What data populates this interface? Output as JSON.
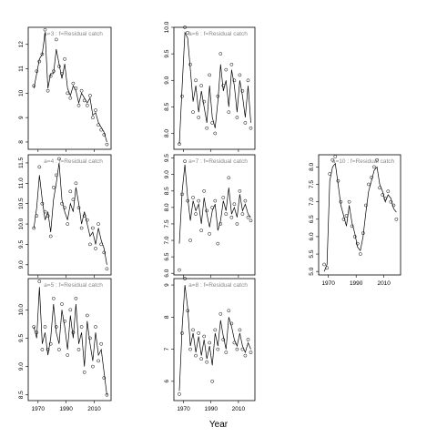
{
  "figure": {
    "xlabel": "Year"
  },
  "chart_data": [
    {
      "type": "line",
      "subtype": "line+points",
      "title": "a=3 : f=Residual catch",
      "ylim": [
        7.7,
        12.7
      ],
      "yticks": [
        8,
        9,
        10,
        11,
        12
      ],
      "xlim": [
        1963,
        2022
      ],
      "x": [
        1967,
        1969,
        1971,
        1973,
        1975,
        1977,
        1979,
        1981,
        1983,
        1985,
        1987,
        1989,
        1991,
        1993,
        1995,
        1997,
        1999,
        2001,
        2003,
        2005,
        2007,
        2009,
        2011,
        2013,
        2015,
        2017,
        2019
      ],
      "y": [
        10.2,
        10.8,
        11.4,
        11.6,
        12.5,
        10.2,
        10.8,
        10.8,
        11.8,
        11.2,
        10.6,
        11.2,
        10.2,
        9.9,
        10.3,
        10.1,
        9.6,
        10.0,
        9.8,
        9.6,
        9.8,
        9.1,
        9.2,
        8.8,
        8.6,
        8.4,
        8.0
      ],
      "points": [
        10.3,
        10.9,
        11.3,
        11.6,
        12.6,
        10.1,
        10.7,
        10.9,
        12.2,
        11.1,
        10.8,
        11.4,
        10.0,
        9.8,
        10.4,
        10.2,
        9.5,
        10.1,
        9.7,
        9.5,
        9.9,
        9.0,
        9.3,
        8.7,
        8.5,
        8.3,
        7.9
      ]
    },
    {
      "type": "line",
      "subtype": "line+points",
      "title": "a=4 : f=Residual catch",
      "ylim": [
        8.75,
        11.7
      ],
      "yticks": [
        9.0,
        9.5,
        10.0,
        10.5,
        11.0,
        11.5
      ],
      "xlim": [
        1963,
        2022
      ],
      "x": [
        1967,
        1969,
        1971,
        1973,
        1975,
        1977,
        1979,
        1981,
        1983,
        1985,
        1987,
        1989,
        1991,
        1993,
        1995,
        1997,
        1999,
        2001,
        2003,
        2005,
        2007,
        2009,
        2011,
        2013,
        2015,
        2017,
        2019
      ],
      "y": [
        9.9,
        10.4,
        11.2,
        10.6,
        10.1,
        10.3,
        9.8,
        10.6,
        11.0,
        11.5,
        10.6,
        10.3,
        10.1,
        10.5,
        10.3,
        10.9,
        10.5,
        10.0,
        10.3,
        10.0,
        9.7,
        9.8,
        9.5,
        9.9,
        9.6,
        9.4,
        9.0
      ],
      "points": [
        9.9,
        10.2,
        11.4,
        10.5,
        10.3,
        10.2,
        9.7,
        10.9,
        11.2,
        11.6,
        10.5,
        10.4,
        10.0,
        10.8,
        10.6,
        11.0,
        10.4,
        9.9,
        10.2,
        10.1,
        9.5,
        9.9,
        9.4,
        10.0,
        9.5,
        9.3,
        8.9
      ]
    },
    {
      "type": "line",
      "subtype": "line+points",
      "title": "a=5 : f=Residual catch",
      "ylim": [
        8.4,
        10.55
      ],
      "yticks": [
        8.5,
        9.0,
        9.5,
        10.0
      ],
      "xlim": [
        1963,
        2022
      ],
      "x": [
        1967,
        1969,
        1971,
        1973,
        1975,
        1977,
        1979,
        1981,
        1983,
        1985,
        1987,
        1989,
        1991,
        1993,
        1995,
        1997,
        1999,
        2001,
        2003,
        2005,
        2007,
        2009,
        2011,
        2013,
        2015,
        2017,
        2019
      ],
      "y": [
        9.7,
        9.5,
        10.4,
        9.4,
        9.6,
        9.2,
        9.5,
        10.1,
        9.6,
        9.4,
        10.0,
        9.7,
        9.3,
        9.9,
        9.5,
        10.1,
        9.4,
        9.6,
        9.0,
        9.8,
        9.4,
        9.1,
        9.6,
        9.2,
        9.3,
        8.9,
        8.5
      ],
      "points": [
        9.7,
        9.6,
        10.5,
        9.3,
        9.7,
        9.3,
        9.4,
        10.2,
        9.7,
        9.3,
        10.1,
        9.8,
        9.2,
        10.0,
        9.6,
        10.2,
        9.3,
        9.7,
        8.9,
        9.9,
        9.5,
        9.0,
        9.7,
        9.1,
        9.4,
        8.8,
        8.5
      ]
    },
    {
      "type": "line",
      "subtype": "line+points",
      "title": "a=6 : f=Residual catch",
      "ylim": [
        7.7,
        10.0
      ],
      "yticks": [
        8.0,
        8.5,
        9.0,
        9.5,
        10.0
      ],
      "xlim": [
        1963,
        2022
      ],
      "x": [
        1967,
        1969,
        1971,
        1973,
        1975,
        1977,
        1979,
        1981,
        1983,
        1985,
        1987,
        1989,
        1991,
        1993,
        1995,
        1997,
        1999,
        2001,
        2003,
        2005,
        2007,
        2009,
        2011,
        2013,
        2015,
        2017,
        2019
      ],
      "y": [
        7.8,
        8.9,
        9.9,
        9.8,
        9.2,
        8.6,
        8.9,
        8.4,
        8.8,
        8.5,
        8.2,
        8.9,
        8.3,
        8.1,
        8.6,
        9.3,
        8.8,
        9.0,
        8.5,
        9.2,
        8.9,
        8.4,
        9.0,
        8.7,
        8.3,
        8.9,
        8.2
      ],
      "points": [
        7.8,
        8.7,
        10.0,
        9.9,
        9.3,
        8.4,
        9.0,
        8.3,
        8.9,
        8.6,
        8.1,
        9.1,
        8.2,
        8.0,
        8.7,
        9.5,
        8.9,
        9.2,
        8.4,
        9.3,
        9.0,
        8.3,
        9.1,
        8.8,
        8.2,
        9.0,
        8.1
      ]
    },
    {
      "type": "line",
      "subtype": "line+points",
      "title": "a=7 : f=Residual catch",
      "ylim": [
        5.95,
        9.6
      ],
      "yticks": [
        6.0,
        6.5,
        7.0,
        7.5,
        8.0,
        8.5,
        9.0,
        9.5
      ],
      "xlim": [
        1963,
        2022
      ],
      "x": [
        1967,
        1969,
        1971,
        1973,
        1975,
        1977,
        1979,
        1981,
        1983,
        1985,
        1987,
        1989,
        1991,
        1993,
        1995,
        1997,
        1999,
        2001,
        2003,
        2005,
        2007,
        2009,
        2011,
        2013,
        2015,
        2017,
        2019
      ],
      "y": [
        6.9,
        8.5,
        9.3,
        8.3,
        7.6,
        8.2,
        7.9,
        8.1,
        7.5,
        8.3,
        7.8,
        7.4,
        7.9,
        8.1,
        7.3,
        7.6,
        8.2,
        7.9,
        8.6,
        7.8,
        8.0,
        7.7,
        8.4,
        7.9,
        8.1,
        7.8,
        7.7
      ],
      "points": [
        6.1,
        8.4,
        9.4,
        8.2,
        7.0,
        8.3,
        7.8,
        8.2,
        7.3,
        8.5,
        7.9,
        7.2,
        8.0,
        8.2,
        6.9,
        7.5,
        8.3,
        7.8,
        8.9,
        7.7,
        8.1,
        7.5,
        8.5,
        7.8,
        8.2,
        7.7,
        7.6
      ]
    },
    {
      "type": "line",
      "subtype": "line+points",
      "title": "a=8 : f=Residual catch",
      "ylim": [
        5.4,
        9.2
      ],
      "yticks": [
        6,
        7,
        8,
        9
      ],
      "xlim": [
        1963,
        2022
      ],
      "x": [
        1967,
        1969,
        1971,
        1973,
        1975,
        1977,
        1979,
        1981,
        1983,
        1985,
        1987,
        1989,
        1991,
        1993,
        1995,
        1997,
        1999,
        2001,
        2003,
        2005,
        2007,
        2009,
        2011,
        2013,
        2015,
        2017,
        2019
      ],
      "y": [
        5.7,
        7.7,
        9.0,
        8.3,
        7.1,
        7.5,
        6.9,
        7.4,
        6.8,
        7.3,
        6.7,
        7.1,
        6.5,
        7.5,
        7.1,
        7.9,
        7.4,
        7.0,
        8.0,
        7.7,
        7.3,
        7.1,
        7.5,
        7.1,
        6.9,
        7.2,
        7.0
      ],
      "points": [
        5.6,
        7.5,
        9.2,
        8.2,
        7.0,
        7.6,
        6.8,
        7.5,
        6.7,
        7.4,
        6.6,
        7.2,
        6.0,
        7.6,
        7.0,
        8.1,
        7.3,
        6.9,
        8.2,
        7.8,
        7.2,
        7.0,
        7.6,
        7.0,
        6.8,
        7.3,
        6.9
      ]
    },
    {
      "type": "line",
      "subtype": "line+points",
      "title": "a=10 : f=Residual catch",
      "ylim": [
        4.9,
        8.35
      ],
      "yticks": [
        5.0,
        5.5,
        6.0,
        6.5,
        7.0,
        7.5,
        8.0
      ],
      "xlim": [
        1963,
        2022
      ],
      "x": [
        1967,
        1969,
        1971,
        1973,
        1975,
        1977,
        1979,
        1981,
        1983,
        1985,
        1987,
        1989,
        1991,
        1993,
        1995,
        1997,
        1999,
        2001,
        2003,
        2005,
        2007,
        2009,
        2011,
        2013,
        2015,
        2017,
        2019
      ],
      "y": [
        5.0,
        5.2,
        7.6,
        8.0,
        8.1,
        7.5,
        6.9,
        6.6,
        6.3,
        6.9,
        6.4,
        6.1,
        5.7,
        5.6,
        6.0,
        6.7,
        7.3,
        7.6,
        7.9,
        8.0,
        7.5,
        7.3,
        7.0,
        7.2,
        7.1,
        6.8,
        6.7
      ],
      "points": [
        5.2,
        5.1,
        7.8,
        8.2,
        8.3,
        7.6,
        7.0,
        6.5,
        6.6,
        7.0,
        6.3,
        6.0,
        5.8,
        5.5,
        6.1,
        6.9,
        7.5,
        7.7,
        8.0,
        8.2,
        7.4,
        7.2,
        7.1,
        7.3,
        7.0,
        6.9,
        6.5
      ]
    }
  ]
}
